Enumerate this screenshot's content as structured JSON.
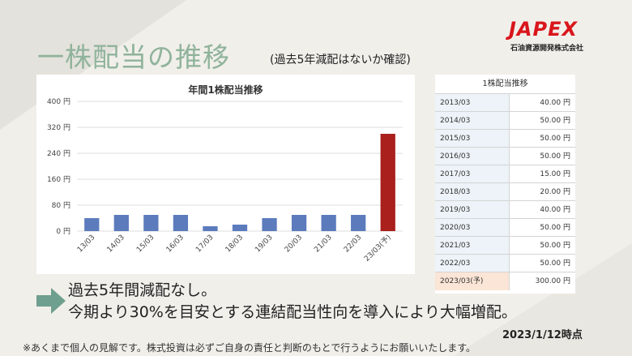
{
  "header": {
    "title": "一株配当の推移",
    "subtitle": "(過去5年減配はないか確認)"
  },
  "logo": {
    "name": "JAPEX",
    "company": "石油資源開発株式会社"
  },
  "chart_data": {
    "type": "bar",
    "title": "年間1株配当推移",
    "xlabel": "",
    "ylabel": "",
    "categories": [
      "13/03",
      "14/03",
      "15/03",
      "16/03",
      "17/03",
      "18/03",
      "19/03",
      "20/03",
      "21/03",
      "22/03",
      "23/03(予)"
    ],
    "values": [
      40,
      50,
      50,
      50,
      15,
      20,
      40,
      50,
      50,
      50,
      300
    ],
    "ylim": [
      0,
      400
    ],
    "yticks": [
      0,
      80,
      160,
      240,
      320,
      400
    ],
    "ytick_labels": [
      "0 円",
      "80 円",
      "160 円",
      "240 円",
      "320 円",
      "400 円"
    ],
    "grid": true,
    "legend": "none",
    "bar_color": "#5b7bbd",
    "highlight_color": "#a9201c",
    "highlight_index": 10
  },
  "table": {
    "header": "1株配当推移",
    "rows": [
      {
        "year": "2013/03",
        "value": "40.00 円"
      },
      {
        "year": "2014/03",
        "value": "50.00 円"
      },
      {
        "year": "2015/03",
        "value": "50.00 円"
      },
      {
        "year": "2016/03",
        "value": "50.00 円"
      },
      {
        "year": "2017/03",
        "value": "15.00 円"
      },
      {
        "year": "2018/03",
        "value": "20.00 円"
      },
      {
        "year": "2019/03",
        "value": "40.00 円"
      },
      {
        "year": "2020/03",
        "value": "50.00 円"
      },
      {
        "year": "2021/03",
        "value": "50.00 円"
      },
      {
        "year": "2022/03",
        "value": "50.00 円"
      },
      {
        "year": "2023/03(予)",
        "value": "300.00 円"
      }
    ]
  },
  "points": {
    "line1": "過去5年間減配なし。",
    "line2": "今期より30%を目安とする連結配当性向を導入により大幅増配。"
  },
  "footer": {
    "date": "2023/1/12時点",
    "disclaimer": "※あくまで個人の見解です。株式投資は必ずご自身の責任と判断のもとで行うようにお願いいたします。"
  },
  "colors": {
    "title": "#8fb39b",
    "arrow": "#6f9f8e",
    "logo": "#d9161c"
  }
}
